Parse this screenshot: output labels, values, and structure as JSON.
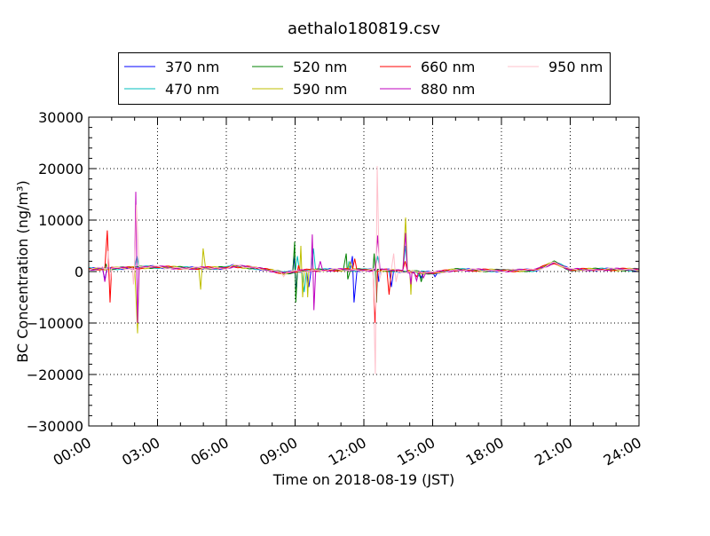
{
  "chart_data": {
    "type": "line",
    "title": "aethalo180819.csv",
    "xlabel": "Time on 2018-08-19 (JST)",
    "ylabel": "BC Concentration (ng/m³)",
    "xlim": [
      0,
      24
    ],
    "ylim": [
      -30000,
      30000
    ],
    "grid": true,
    "legend_placement": "top-center-outside",
    "x_ticks": [
      0,
      3,
      6,
      9,
      12,
      15,
      18,
      21,
      24
    ],
    "x_tick_labels": [
      "00:00",
      "03:00",
      "06:00",
      "09:00",
      "12:00",
      "15:00",
      "18:00",
      "21:00",
      "24:00"
    ],
    "y_ticks": [
      -30000,
      -20000,
      -10000,
      0,
      10000,
      20000,
      30000
    ],
    "y_tick_labels": [
      "−30000",
      "−20000",
      "−10000",
      "0",
      "10000",
      "20000",
      "30000"
    ],
    "baseline": [
      [
        0,
        500
      ],
      [
        1.5,
        700
      ],
      [
        2.8,
        900
      ],
      [
        4.5,
        600
      ],
      [
        6,
        700
      ],
      [
        6.3,
        1100
      ],
      [
        7.3,
        700
      ],
      [
        8,
        200
      ],
      [
        8.5,
        -300
      ],
      [
        9.5,
        200
      ],
      [
        11,
        300
      ],
      [
        13,
        300
      ],
      [
        15,
        -300
      ],
      [
        16,
        300
      ],
      [
        18,
        200
      ],
      [
        19.5,
        300
      ],
      [
        20.3,
        1800
      ],
      [
        21,
        300
      ],
      [
        22.5,
        400
      ],
      [
        24,
        400
      ]
    ],
    "series": [
      {
        "name": "370 nm",
        "color": "#0000ff",
        "spikes": [
          [
            0.7,
            -1500
          ],
          [
            8.95,
            3000
          ],
          [
            9.05,
            -4000
          ],
          [
            9.6,
            -3000
          ],
          [
            11.5,
            3000
          ],
          [
            11.57,
            -6000
          ],
          [
            12.65,
            -2000
          ],
          [
            13.2,
            -3000
          ],
          [
            14.5,
            -1200
          ],
          [
            15.1,
            -1000
          ]
        ]
      },
      {
        "name": "470 nm",
        "color": "#00bfbf",
        "spikes": [
          [
            2.1,
            3000
          ],
          [
            9.1,
            3000
          ],
          [
            9.4,
            -4000
          ],
          [
            9.8,
            4500
          ],
          [
            11.35,
            2000
          ],
          [
            12.6,
            3000
          ],
          [
            13.82,
            5000
          ],
          [
            14.4,
            -900
          ]
        ]
      },
      {
        "name": "520 nm",
        "color": "#008000",
        "spikes": [
          [
            0.75,
            1500
          ],
          [
            8.98,
            5800
          ],
          [
            9.03,
            -6000
          ],
          [
            11.23,
            3500
          ],
          [
            11.3,
            -1500
          ],
          [
            12.45,
            3500
          ],
          [
            12.55,
            -6000
          ],
          [
            14.5,
            -2000
          ]
        ]
      },
      {
        "name": "590 nm",
        "color": "#bfbf00",
        "spikes": [
          [
            2.13,
            -12000
          ],
          [
            4.88,
            -3500
          ],
          [
            4.99,
            4500
          ],
          [
            9.25,
            5000
          ],
          [
            9.33,
            -5000
          ],
          [
            9.55,
            -5000
          ],
          [
            11.4,
            1800
          ],
          [
            13.82,
            10500
          ],
          [
            14.05,
            -4500
          ]
        ]
      },
      {
        "name": "660 nm",
        "color": "#ff0000",
        "spikes": [
          [
            0.81,
            8000
          ],
          [
            0.93,
            -6000
          ],
          [
            9.15,
            1200
          ],
          [
            11.6,
            2500
          ],
          [
            12.48,
            -10000
          ],
          [
            13.1,
            -4500
          ],
          [
            13.8,
            2000
          ],
          [
            14.3,
            -1000
          ]
        ]
      },
      {
        "name": "880 nm",
        "color": "#bf00bf",
        "spikes": [
          [
            0.7,
            -2000
          ],
          [
            2.05,
            15500
          ],
          [
            2.13,
            -10000
          ],
          [
            9.75,
            7200
          ],
          [
            9.82,
            -7500
          ],
          [
            10.1,
            2000
          ],
          [
            12.6,
            7000
          ],
          [
            13.82,
            7500
          ],
          [
            14.05,
            -2500
          ],
          [
            14.3,
            -1800
          ],
          [
            14.6,
            -1200
          ]
        ]
      },
      {
        "name": "950 nm",
        "color": "#ffc0cb",
        "spikes": [
          [
            0.85,
            4000
          ],
          [
            0.95,
            -1500
          ],
          [
            1.95,
            -2500
          ],
          [
            2.08,
            13000
          ],
          [
            8.5,
            -1000
          ],
          [
            12.5,
            -20000
          ],
          [
            12.58,
            20500
          ],
          [
            12.68,
            -1500
          ],
          [
            13.3,
            3500
          ],
          [
            13.4,
            -2000
          ]
        ]
      }
    ]
  }
}
